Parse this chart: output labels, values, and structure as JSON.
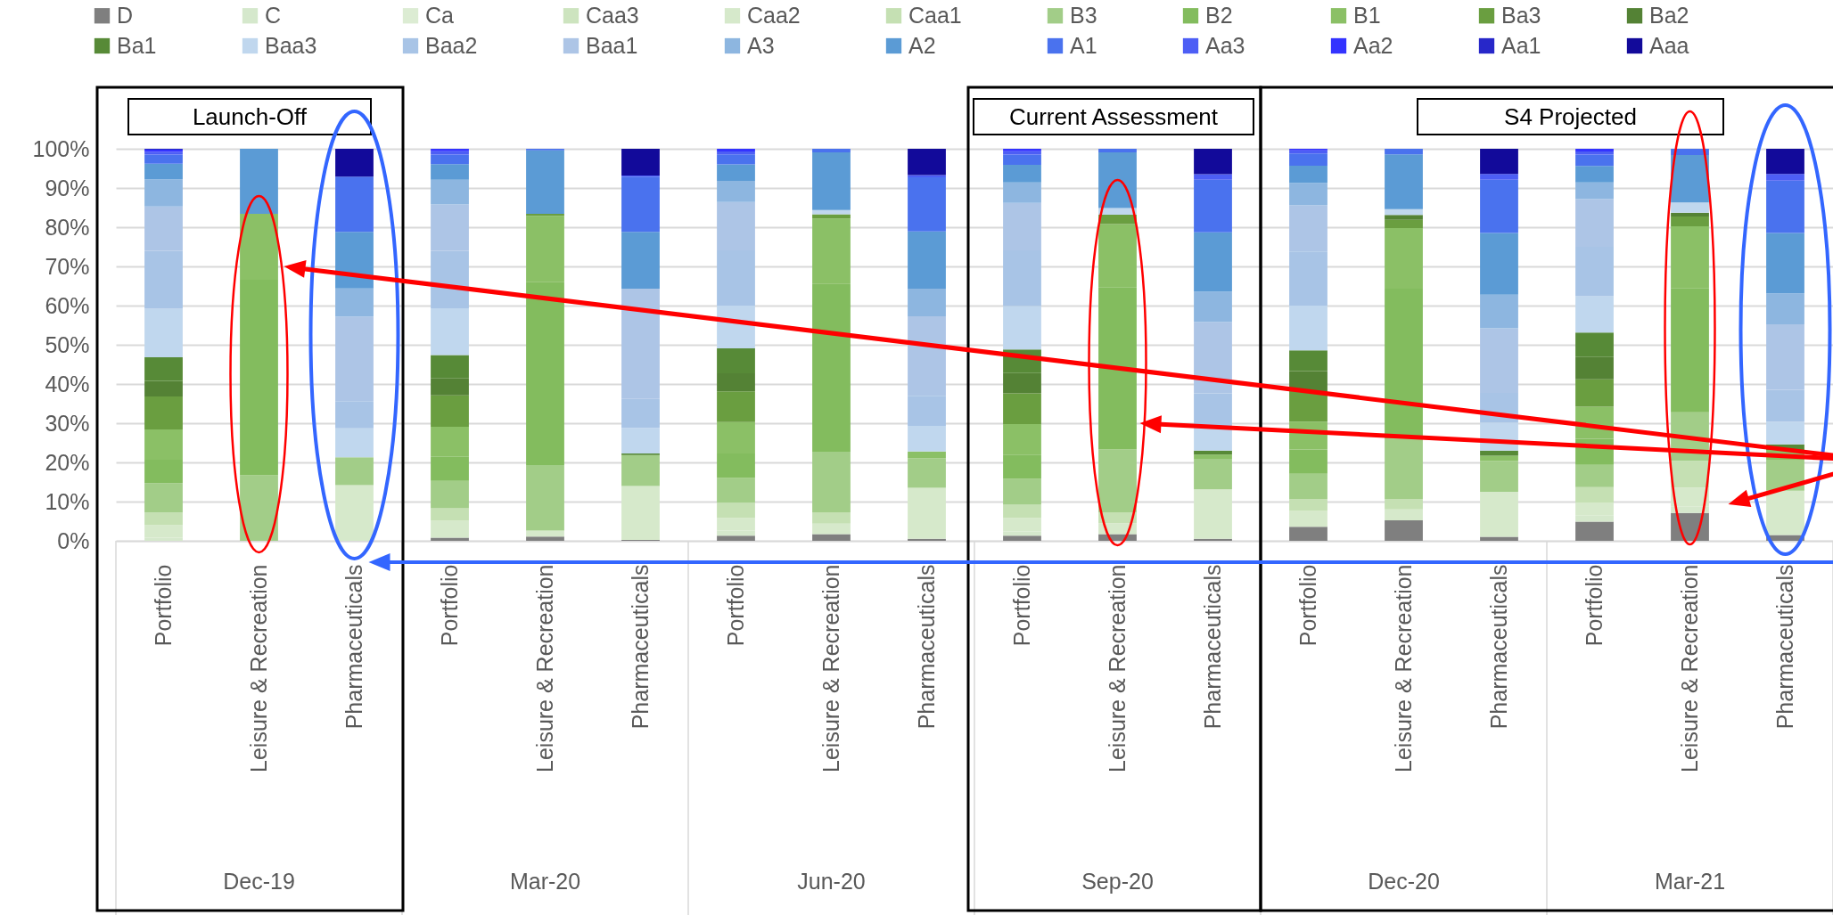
{
  "chart_data": {
    "type": "bar",
    "stacked": true,
    "categories": [
      "Portfolio",
      "Leisure & Recreation",
      "Pharmaceuticals",
      "Portfolio",
      "Leisure & Recreation",
      "Pharmaceuticals",
      "Portfolio",
      "Leisure & Recreation",
      "Pharmaceuticals",
      "Portfolio",
      "Leisure & Recreation",
      "Pharmaceuticals",
      "Portfolio",
      "Leisure & Recreation",
      "Pharmaceuticals",
      "Portfolio",
      "Leisure & Recreation",
      "Pharmaceuticals"
    ],
    "series": [
      {
        "name": "D",
        "color": "#7f7f7f",
        "values": [
          null,
          null,
          null,
          0.8,
          1.1,
          0.2,
          1.3,
          1.7,
          0.5,
          1.3,
          1.7,
          0.5,
          3.6,
          5.2,
          1.0,
          4.9,
          7.1,
          1.5
        ]
      },
      {
        "name": "C",
        "color": "#d5e8cc",
        "values": [
          0.8,
          null,
          null,
          null,
          null,
          null,
          1.3,
          null,
          null,
          1.1,
          null,
          null,
          null,
          null,
          null,
          1.5,
          1.6,
          null
        ]
      },
      {
        "name": "Ca",
        "color": "#dcecd3",
        "values": [
          null,
          null,
          null,
          null,
          null,
          null,
          null,
          null,
          null,
          null,
          null,
          null,
          null,
          null,
          null,
          null,
          null,
          null
        ]
      },
      {
        "name": "Caa3",
        "color": "#cde4bf",
        "values": [
          null,
          null,
          null,
          null,
          null,
          null,
          null,
          null,
          null,
          null,
          null,
          null,
          null,
          null,
          null,
          null,
          null,
          null
        ]
      },
      {
        "name": "Caa2",
        "color": "#d6e9cb",
        "values": [
          3.2,
          null,
          14.2,
          4.3,
          1.5,
          13.8,
          3.2,
          2.7,
          13.0,
          3.4,
          2.8,
          12.6,
          4.0,
          2.8,
          11.5,
          3.4,
          4.9,
          11.3
        ]
      },
      {
        "name": "Caa1",
        "color": "#c5e0b3",
        "values": [
          3.2,
          null,
          null,
          3.2,
          null,
          null,
          3.9,
          2.9,
          null,
          3.4,
          2.8,
          null,
          3.1,
          2.7,
          null,
          3.9,
          6.8,
          null
        ]
      },
      {
        "name": "B3",
        "color": "#a2cd88",
        "values": [
          7.5,
          16.7,
          7.1,
          7.0,
          16.7,
          7.9,
          6.3,
          15.4,
          7.6,
          6.6,
          16.0,
          7.8,
          6.4,
          15.3,
          7.9,
          5.7,
          12.4,
          7.9
        ]
      },
      {
        "name": "B2",
        "color": "#83bc5e",
        "values": [
          6.0,
          49.9,
          null,
          6.1,
          46.8,
          null,
          6.3,
          42.9,
          null,
          6.2,
          41.4,
          null,
          6.2,
          38.3,
          null,
          6.6,
          31.7,
          null
        ]
      },
      {
        "name": "B1",
        "color": "#8bc066",
        "values": [
          7.7,
          16.8,
          null,
          7.7,
          16.8,
          null,
          8.0,
          16.6,
          1.7,
          7.8,
          16.1,
          1.1,
          7.1,
          15.5,
          1.3,
          8.2,
          15.7,
          2.5
        ]
      },
      {
        "name": "Ba3",
        "color": "#6a9e40",
        "values": [
          8.4,
          null,
          null,
          8.0,
          0.5,
          null,
          7.8,
          1.1,
          null,
          7.8,
          2.4,
          null,
          7.8,
          2.1,
          null,
          7.0,
          2.5,
          null
        ]
      },
      {
        "name": "Ba2",
        "color": "#548235",
        "values": [
          4.0,
          null,
          null,
          4.3,
          null,
          null,
          4.6,
          null,
          null,
          5.2,
          null,
          null,
          5.1,
          1.2,
          null,
          5.7,
          1.0,
          null
        ]
      },
      {
        "name": "Ba1",
        "color": "#578a37",
        "values": [
          6.0,
          null,
          null,
          6.0,
          null,
          0.4,
          6.4,
          null,
          null,
          6.0,
          null,
          1.0,
          5.3,
          null,
          1.3,
          6.2,
          null,
          1.4
        ]
      },
      {
        "name": "Baa3",
        "color": "#c0d7ee",
        "values": [
          12.4,
          null,
          7.4,
          11.9,
          null,
          6.5,
          10.9,
          1.1,
          6.5,
          11.1,
          1.7,
          6.1,
          11.4,
          1.5,
          7.1,
          9.3,
          2.6,
          5.8
        ]
      },
      {
        "name": "Baa2",
        "color": "#a8c4e6",
        "values": [
          14.8,
          null,
          6.9,
          14.7,
          null,
          7.4,
          14.1,
          null,
          7.7,
          14.2,
          null,
          8.5,
          13.8,
          null,
          7.6,
          12.6,
          null,
          8.1
        ]
      },
      {
        "name": "Baa1",
        "color": "#adc5e6",
        "values": [
          11.3,
          null,
          21.6,
          11.8,
          null,
          28.1,
          12.3,
          null,
          20.3,
          12.1,
          null,
          18.2,
          11.8,
          null,
          16.5,
          12.2,
          null,
          16.7
        ]
      },
      {
        "name": "A3",
        "color": "#8db6e0",
        "values": [
          6.9,
          null,
          7.2,
          6.3,
          null,
          null,
          5.4,
          null,
          7.0,
          5.2,
          null,
          7.8,
          5.7,
          null,
          8.6,
          4.2,
          null,
          7.9
        ]
      },
      {
        "name": "A2",
        "color": "#5b9bd5",
        "values": [
          4.0,
          16.6,
          14.4,
          4.0,
          16.2,
          14.5,
          4.2,
          14.7,
          14.6,
          4.5,
          14.2,
          15.1,
          4.4,
          14.0,
          15.7,
          4.2,
          12.1,
          15.4
        ]
      },
      {
        "name": "A1",
        "color": "#4a72ee",
        "values": [
          2.3,
          null,
          14.1,
          2.4,
          0.4,
          14.1,
          2.6,
          0.9,
          13.8,
          2.6,
          0.9,
          13.4,
          3.1,
          1.4,
          13.6,
          2.9,
          1.6,
          13.4
        ]
      },
      {
        "name": "Aa3",
        "color": "#4d5ef5",
        "values": [
          0.7,
          null,
          null,
          0.9,
          null,
          0.3,
          0.7,
          null,
          0.6,
          0.9,
          null,
          1.4,
          0.8,
          null,
          1.5,
          0.8,
          null,
          1.7
        ]
      },
      {
        "name": "Aa2",
        "color": "#3333ff",
        "values": [
          0.6,
          null,
          null,
          0.6,
          null,
          null,
          0.7,
          null,
          null,
          0.6,
          null,
          null,
          0.4,
          null,
          null,
          0.7,
          null,
          null
        ]
      },
      {
        "name": "Aa1",
        "color": "#2727c9",
        "values": [
          0.2,
          null,
          null,
          null,
          null,
          null,
          null,
          null,
          null,
          null,
          null,
          null,
          null,
          null,
          null,
          null,
          null,
          null
        ]
      },
      {
        "name": "Aaa",
        "color": "#120a9a",
        "values": [
          null,
          null,
          7.1,
          null,
          null,
          6.8,
          null,
          null,
          6.7,
          null,
          null,
          6.5,
          null,
          null,
          6.4,
          null,
          null,
          6.4
        ]
      }
    ],
    "ylim": [
      0,
      100
    ],
    "yticks": [
      {
        "value": 0,
        "label": "0%"
      },
      {
        "value": 10,
        "label": "10%"
      },
      {
        "value": 20,
        "label": "20%"
      },
      {
        "value": 30,
        "label": "30%"
      },
      {
        "value": 40,
        "label": "40%"
      },
      {
        "value": 50,
        "label": "50%"
      },
      {
        "value": 60,
        "label": "60%"
      },
      {
        "value": 70,
        "label": "70%"
      },
      {
        "value": 80,
        "label": "80%"
      },
      {
        "value": 90,
        "label": "90%"
      },
      {
        "value": 100,
        "label": "100%"
      }
    ],
    "grid": "y",
    "legend": "top",
    "annotations": [
      "Dec-19",
      "Mar-20",
      "Jun-20",
      "Sep-20",
      "Dec-20",
      "Mar-21",
      "Launch-Off",
      "Current Assessment",
      "S4 Projected"
    ]
  }
}
